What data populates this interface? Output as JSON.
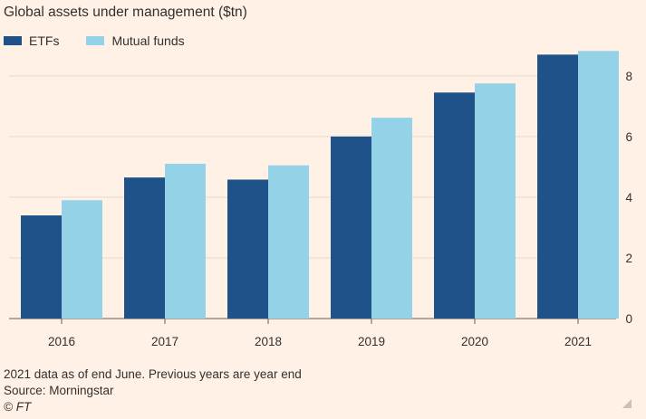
{
  "chart_data": {
    "type": "bar",
    "title": "Global assets under management ($tn)",
    "categories": [
      "2016",
      "2017",
      "2018",
      "2019",
      "2020",
      "2021"
    ],
    "series": [
      {
        "name": "ETFs",
        "color": "#1f5289",
        "values": [
          3.4,
          4.65,
          4.58,
          6.0,
          7.45,
          8.7
        ]
      },
      {
        "name": "Mutual funds",
        "color": "#94d2e8",
        "values": [
          3.9,
          5.1,
          5.05,
          6.62,
          7.75,
          8.82
        ]
      }
    ],
    "ylim": [
      0,
      8.8
    ],
    "yticks": [
      0,
      2,
      4,
      6,
      8
    ],
    "y_axis_side": "right",
    "grid": true,
    "legend_position": "top-left",
    "xlabel": "",
    "ylabel": ""
  },
  "footer": {
    "note": "2021 data as of end June. Previous years are year end",
    "source": "Source: Morningstar",
    "credit": "© FT"
  },
  "colors": {
    "background": "#fff1e5",
    "gridline": "#e6d9ce",
    "axis": "#66605c"
  }
}
